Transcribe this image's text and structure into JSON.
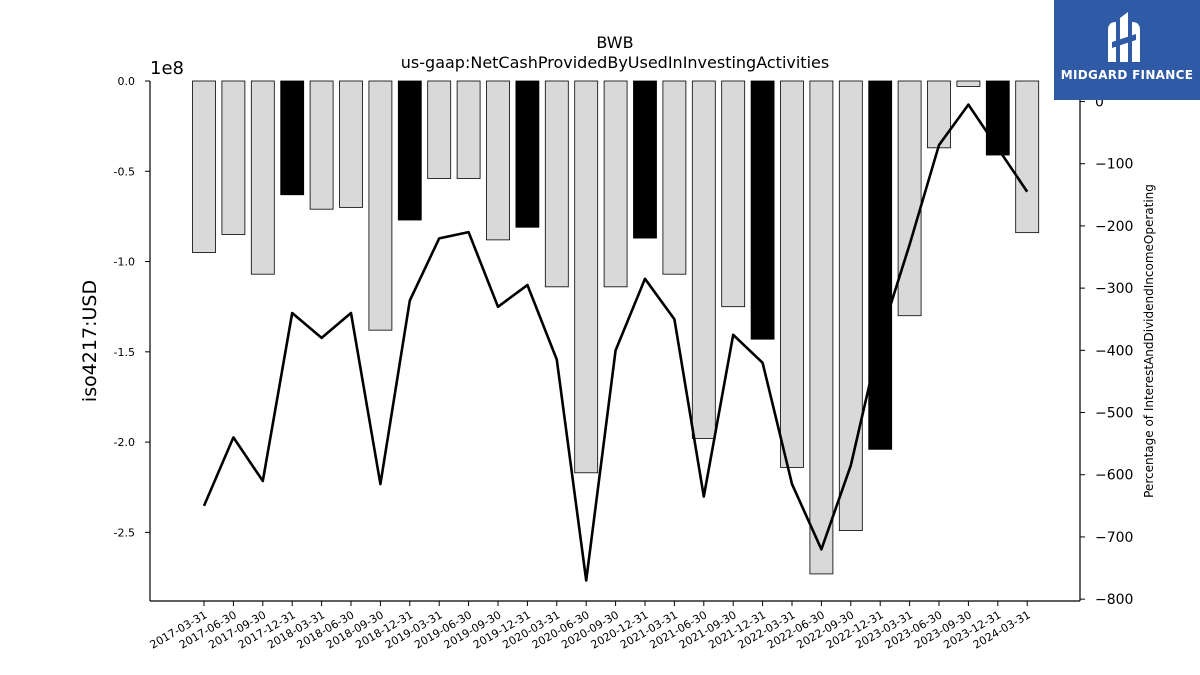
{
  "brand": {
    "name": "MIDGARD FINANCE",
    "bg_color": "#2f5aa6"
  },
  "chart_data": {
    "type": "bar",
    "title": "BWB",
    "subtitle": "us-gaap:NetCashProvidedByUsedInInvestingActivities",
    "ylabel": "iso4217:USD",
    "y_offset_label": "1e8",
    "y2label": "Percentage of InterestAndDividendIncomeOperating",
    "ylim": [
      -2.88,
      0
    ],
    "y_ticks": [
      0.0,
      -0.5,
      -1.0,
      -1.5,
      -2.0,
      -2.5
    ],
    "y_tick_labels": [
      "0.0",
      "-0.5",
      "-1.0",
      "-1.5",
      "-2.0",
      "-2.5"
    ],
    "y2lim": [
      -803,
      33
    ],
    "y2_ticks": [
      0,
      -100,
      -200,
      -300,
      -400,
      -500,
      -600,
      -700,
      -800
    ],
    "y2_tick_labels": [
      "0",
      "−100",
      "−200",
      "−300",
      "−400",
      "−500",
      "−600",
      "−700",
      "−800"
    ],
    "grid": false,
    "categories": [
      "2017-03-31",
      "2017-06-30",
      "2017-09-30",
      "2017-12-31",
      "2018-03-31",
      "2018-06-30",
      "2018-09-30",
      "2018-12-31",
      "2019-03-31",
      "2019-06-30",
      "2019-09-30",
      "2019-12-31",
      "2020-03-31",
      "2020-06-30",
      "2020-09-30",
      "2020-12-31",
      "2021-03-31",
      "2021-06-30",
      "2021-09-30",
      "2021-12-31",
      "2022-03-31",
      "2022-06-30",
      "2022-09-30",
      "2022-12-31",
      "2023-03-31",
      "2023-06-30",
      "2023-09-30",
      "2023-12-31",
      "2024-03-31"
    ],
    "values": [
      -0.95,
      -0.85,
      -1.07,
      -0.63,
      -0.71,
      -0.7,
      -1.38,
      -0.77,
      -0.54,
      -0.54,
      -0.88,
      -0.81,
      -1.14,
      -2.17,
      -1.14,
      -0.87,
      -1.07,
      -1.98,
      -1.25,
      -1.43,
      -2.14,
      -2.73,
      -2.49,
      -2.04,
      -1.3,
      -0.37,
      -0.03,
      -0.41,
      -0.84
    ],
    "highlight": [
      false,
      false,
      false,
      true,
      false,
      false,
      false,
      true,
      false,
      false,
      false,
      true,
      false,
      false,
      false,
      true,
      false,
      false,
      false,
      true,
      false,
      false,
      false,
      true,
      false,
      false,
      false,
      true,
      false
    ],
    "bar_color": "#d9d9d9",
    "highlight_color": "#000000",
    "line_values": [
      -650,
      -540,
      -610,
      -340,
      -380,
      -340,
      -615,
      -320,
      -220,
      -210,
      -330,
      -295,
      -415,
      -770,
      -400,
      -285,
      -350,
      -635,
      -375,
      -420,
      -615,
      -720,
      -585,
      -380,
      -230,
      -70,
      -5,
      -75,
      -145
    ],
    "line_color": "#000000"
  }
}
